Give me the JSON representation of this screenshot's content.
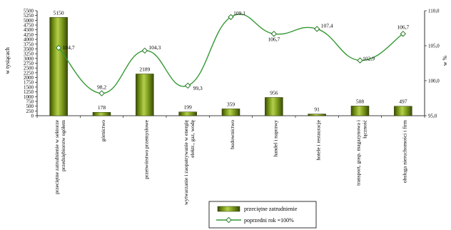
{
  "chart_data": {
    "type": "bar",
    "categories": [
      "przeciętne zatrudnienie w sektorze przedsiębiorstw ogółem",
      "górnictwo",
      "przetwórstwo przemysłowe",
      "wytwarzanie i zaopatrywanie w energię elektr., gaz, wodę",
      "budownictwo",
      "handel i naprawy",
      "hotele i restauracje",
      "transport, gosp. magazynowa i łączność",
      "obsługa nieruchomości i firm"
    ],
    "category_lines": [
      [
        "przeciętne zatrudnienie w sektorze",
        "przedsiębiorstw ogółem"
      ],
      [
        "górnictwo"
      ],
      [
        "przetwórstwo przemysłowe"
      ],
      [
        "wytwarzanie i zaopatrywanie w energię",
        "elektr., gaz, wodę"
      ],
      [
        "budownictwo"
      ],
      [
        "handel i naprawy"
      ],
      [
        "hotele i restauracje"
      ],
      [
        "transport, gosp. magazynowa i",
        "łączność"
      ],
      [
        "obsługa nieruchomości i firm"
      ]
    ],
    "series": [
      {
        "name": "przeciętne zatrudnienie",
        "type": "bar",
        "axis": "left",
        "values": [
          5150,
          178,
          2189,
          199,
          359,
          956,
          91,
          508,
          497
        ],
        "labels": [
          "5150",
          "178",
          "2189",
          "199",
          "359",
          "956",
          "91",
          "508",
          "497"
        ]
      },
      {
        "name": "poprzedni rok =100%",
        "type": "line",
        "axis": "right",
        "values": [
          104.7,
          98.2,
          104.3,
          99.3,
          109.1,
          106.7,
          107.4,
          102.9,
          106.7
        ],
        "labels": [
          "104,7",
          "98,2",
          "104,3",
          "99,3",
          "109,1",
          "106,7",
          "107,4",
          "102,9",
          "106,7"
        ]
      }
    ],
    "ylabel": "w tysiącach",
    "ylabel_right": "w %",
    "ylim": [
      0,
      5500
    ],
    "ylim_right": [
      95,
      110
    ],
    "yticks": [
      "0",
      "250",
      "500",
      "750",
      "1000",
      "1250",
      "1500",
      "1750",
      "2000",
      "2250",
      "2500",
      "2750",
      "3000",
      "3250",
      "3500",
      "3750",
      "4000",
      "4250",
      "4500",
      "4750",
      "5000",
      "5250",
      "5500"
    ],
    "yticks_right": [
      "95,0",
      "100,0",
      "105,0",
      "110,0"
    ],
    "legend_position": "bottom-center",
    "grid": false,
    "colors": {
      "bar_fill": "#7a9a1c",
      "bar_dark": "#3a4a08",
      "bar_light": "#b5cf4a",
      "line": "#339933",
      "marker_fill": "#ffffff"
    }
  }
}
